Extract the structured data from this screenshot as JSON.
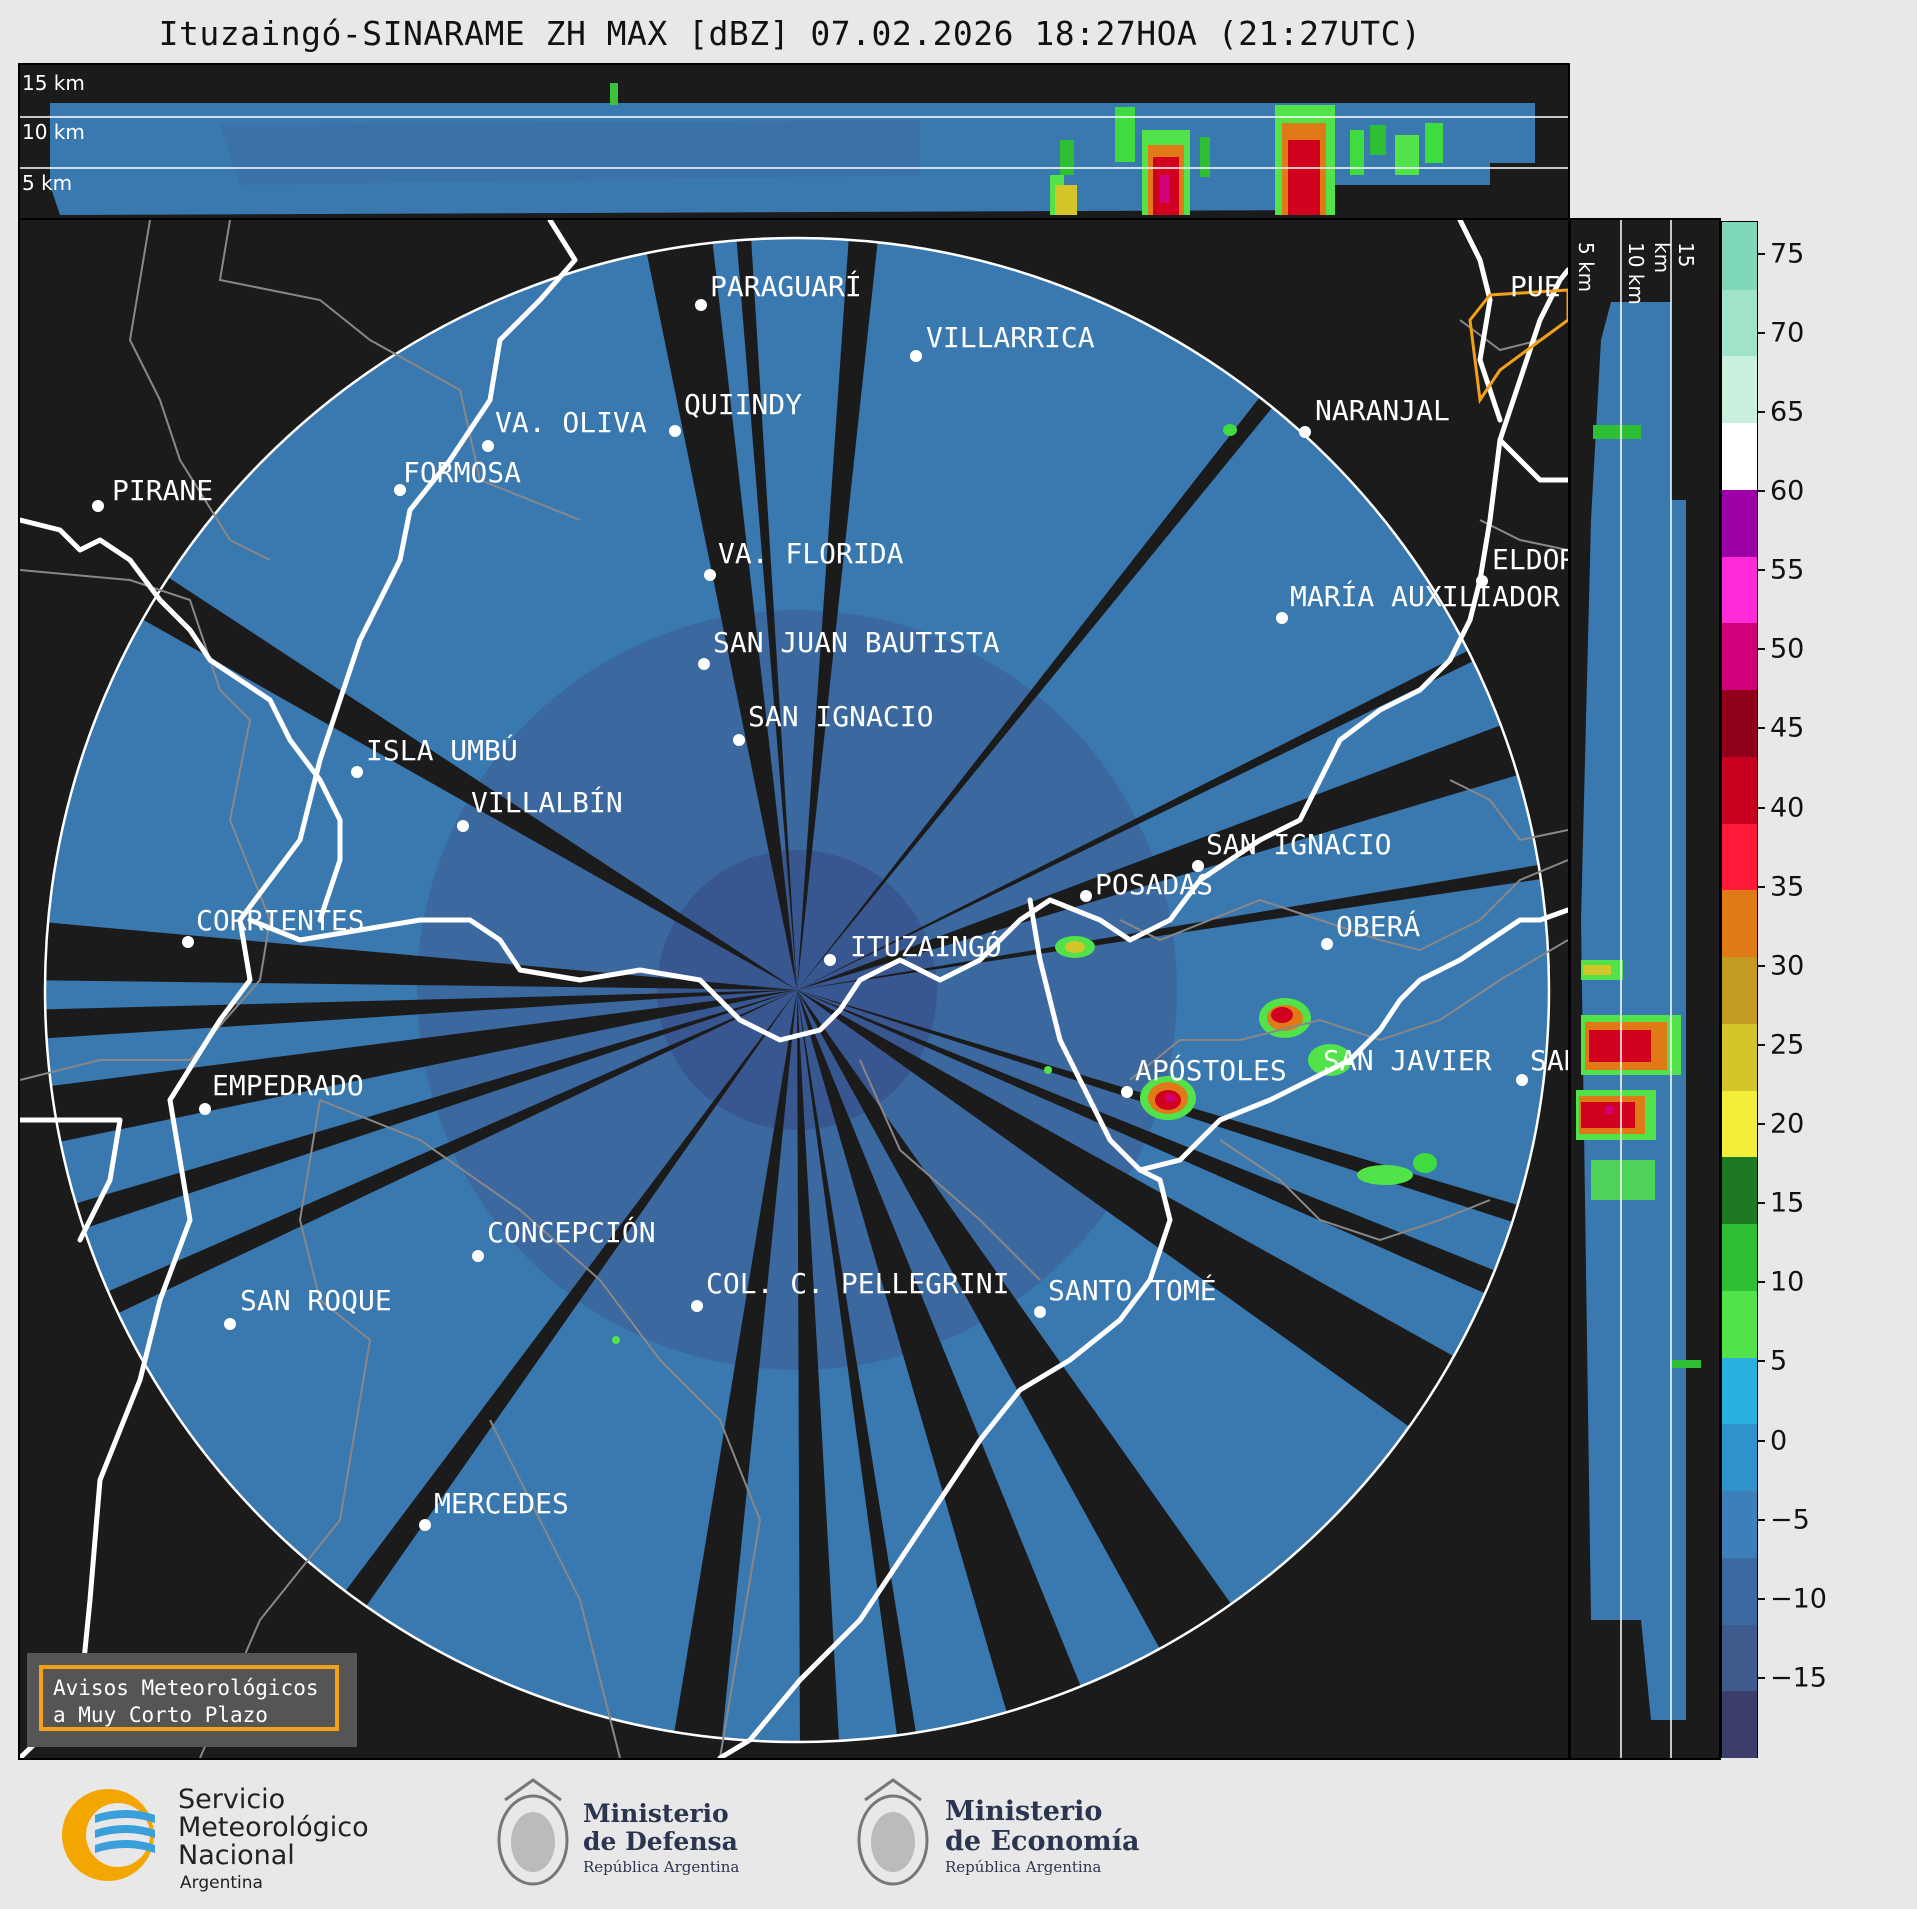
{
  "title": "Ituzaingó-SINARAME ZH MAX [dBZ] 07.02.2026 18:27HOA (21:27UTC)",
  "top_section": {
    "altitude_labels": [
      "15 km",
      "10 km",
      "5 km"
    ]
  },
  "right_section": {
    "altitude_labels": [
      "5 km",
      "10 km",
      "15 km"
    ]
  },
  "map": {
    "radar_site": "ITUZAINGÓ",
    "cities": [
      {
        "name": "PIRANE"
      },
      {
        "name": "PARAGUARÍ"
      },
      {
        "name": "VILLARRICA"
      },
      {
        "name": "QUIINDY"
      },
      {
        "name": "VA. OLIVA"
      },
      {
        "name": "FORMOSA"
      },
      {
        "name": "NARANJAL"
      },
      {
        "name": "PUE"
      },
      {
        "name": "VA. FLORIDA"
      },
      {
        "name": "ELDOR"
      },
      {
        "name": "MARÍA AUXILIADOR"
      },
      {
        "name": "SAN JUAN BAUTISTA"
      },
      {
        "name": "SAN IGNACIO"
      },
      {
        "name": "ISLA UMBÚ"
      },
      {
        "name": "VILLALBÍN"
      },
      {
        "name": "SAN IGNACIO"
      },
      {
        "name": "POSADAS"
      },
      {
        "name": "CORRIENTES"
      },
      {
        "name": "ITUZAINGÓ"
      },
      {
        "name": "OBERÁ"
      },
      {
        "name": "EMPEDRADO"
      },
      {
        "name": "APÓSTOLES"
      },
      {
        "name": "SAN JAVIER"
      },
      {
        "name": "SAN"
      },
      {
        "name": "CONCEPCIÓN"
      },
      {
        "name": "SAN ROQUE"
      },
      {
        "name": "COL. C. PELLEGRINI"
      },
      {
        "name": "SANTO TOMÉ"
      },
      {
        "name": "MERCEDES"
      }
    ]
  },
  "warning_box": {
    "line1": "Avisos Meteorológicos",
    "line2": "a Muy Corto Plazo"
  },
  "colorbar": {
    "unit": "dBZ",
    "ticks": [
      "75",
      "70",
      "65",
      "60",
      "55",
      "50",
      "45",
      "40",
      "35",
      "30",
      "25",
      "20",
      "15",
      "10",
      "5",
      "0",
      "−5",
      "−10",
      "−15"
    ],
    "range": [
      -20,
      77
    ],
    "colors": [
      "#3d3d6b",
      "#3f5a8c",
      "#3a6aa0",
      "#3d7fb8",
      "#2f92cc",
      "#2ab0e0",
      "#52e34a",
      "#2fbf35",
      "#1e7a22",
      "#f2ee3a",
      "#d4c52a",
      "#c39a22",
      "#e07a16",
      "#ff1a3a",
      "#c8001e",
      "#90001a",
      "#d1007a",
      "#ff2ad8",
      "#9e00a8",
      "#ffffff",
      "#c8f0dc",
      "#9fe3c8",
      "#7fd8b8"
    ]
  },
  "logos": {
    "smn": {
      "line1": "Servicio",
      "line2": "Meteorológico",
      "line3": "Nacional",
      "line4": "Argentina"
    },
    "defensa": {
      "line1": "Ministerio",
      "line2": "de Defensa",
      "line3": "República Argentina"
    },
    "economia": {
      "line1": "Ministerio",
      "line2": "de Economía",
      "line3": "República Argentina"
    }
  }
}
